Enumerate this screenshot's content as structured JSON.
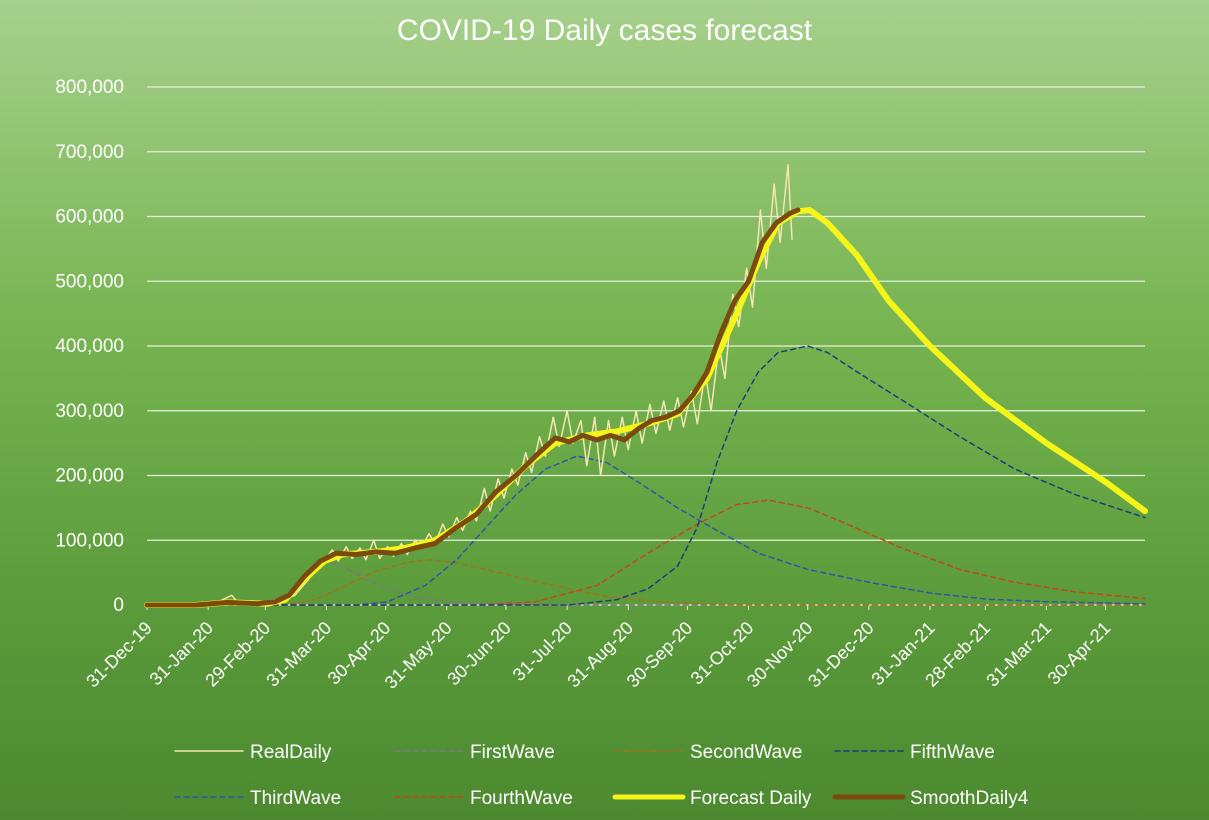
{
  "chart_data": {
    "type": "line",
    "title": "COVID-19 Daily cases forecast",
    "xlabel": "",
    "ylabel": "",
    "ylim": [
      0,
      800000
    ],
    "y_ticks": [
      "0",
      "100,000",
      "200,000",
      "300,000",
      "400,000",
      "500,000",
      "600,000",
      "700,000",
      "800,000"
    ],
    "x_ticks": [
      "31-Dec-19",
      "31-Jan-20",
      "29-Feb-20",
      "31-Mar-20",
      "30-Apr-20",
      "31-May-20",
      "30-Jun-20",
      "31-Jul-20",
      "31-Aug-20",
      "30-Sep-20",
      "31-Oct-20",
      "30-Nov-20",
      "31-Dec-20",
      "31-Jan-21",
      "28-Feb-21",
      "31-Mar-21",
      "30-Apr-21"
    ],
    "x_range": [
      "2019-12-31",
      "2021-05-20"
    ],
    "grid": true,
    "legend_position": "bottom",
    "series": [
      {
        "name": "RealDaily",
        "color": "#f3e6b0",
        "style": "solid",
        "width": 1.5,
        "points": [
          [
            "2019-12-31",
            0
          ],
          [
            "2020-01-20",
            2000
          ],
          [
            "2020-01-31",
            3000
          ],
          [
            "2020-02-05",
            5000
          ],
          [
            "2020-02-12",
            15000
          ],
          [
            "2020-02-15",
            4000
          ],
          [
            "2020-02-25",
            2000
          ],
          [
            "2020-03-05",
            3000
          ],
          [
            "2020-03-15",
            15000
          ],
          [
            "2020-03-22",
            40000
          ],
          [
            "2020-03-29",
            65000
          ],
          [
            "2020-04-03",
            85000
          ],
          [
            "2020-04-06",
            68000
          ],
          [
            "2020-04-10",
            90000
          ],
          [
            "2020-04-13",
            72000
          ],
          [
            "2020-04-17",
            88000
          ],
          [
            "2020-04-20",
            70000
          ],
          [
            "2020-04-24",
            100000
          ],
          [
            "2020-04-27",
            72000
          ],
          [
            "2020-05-01",
            90000
          ],
          [
            "2020-05-04",
            75000
          ],
          [
            "2020-05-08",
            95000
          ],
          [
            "2020-05-11",
            78000
          ],
          [
            "2020-05-15",
            100000
          ],
          [
            "2020-05-18",
            88000
          ],
          [
            "2020-05-22",
            110000
          ],
          [
            "2020-05-25",
            95000
          ],
          [
            "2020-05-29",
            125000
          ],
          [
            "2020-06-01",
            105000
          ],
          [
            "2020-06-05",
            135000
          ],
          [
            "2020-06-08",
            115000
          ],
          [
            "2020-06-12",
            145000
          ],
          [
            "2020-06-15",
            130000
          ],
          [
            "2020-06-19",
            180000
          ],
          [
            "2020-06-22",
            145000
          ],
          [
            "2020-06-26",
            195000
          ],
          [
            "2020-06-29",
            165000
          ],
          [
            "2020-07-03",
            210000
          ],
          [
            "2020-07-06",
            185000
          ],
          [
            "2020-07-10",
            235000
          ],
          [
            "2020-07-13",
            205000
          ],
          [
            "2020-07-17",
            260000
          ],
          [
            "2020-07-20",
            230000
          ],
          [
            "2020-07-24",
            290000
          ],
          [
            "2020-07-27",
            245000
          ],
          [
            "2020-07-31",
            300000
          ],
          [
            "2020-08-03",
            250000
          ],
          [
            "2020-08-07",
            285000
          ],
          [
            "2020-08-10",
            215000
          ],
          [
            "2020-08-14",
            290000
          ],
          [
            "2020-08-17",
            200000
          ],
          [
            "2020-08-21",
            285000
          ],
          [
            "2020-08-24",
            230000
          ],
          [
            "2020-08-28",
            290000
          ],
          [
            "2020-08-31",
            240000
          ],
          [
            "2020-09-04",
            300000
          ],
          [
            "2020-09-07",
            250000
          ],
          [
            "2020-09-11",
            310000
          ],
          [
            "2020-09-14",
            265000
          ],
          [
            "2020-09-18",
            315000
          ],
          [
            "2020-09-21",
            270000
          ],
          [
            "2020-09-25",
            320000
          ],
          [
            "2020-09-28",
            275000
          ],
          [
            "2020-10-02",
            330000
          ],
          [
            "2020-10-05",
            280000
          ],
          [
            "2020-10-09",
            360000
          ],
          [
            "2020-10-12",
            300000
          ],
          [
            "2020-10-16",
            400000
          ],
          [
            "2020-10-19",
            350000
          ],
          [
            "2020-10-23",
            480000
          ],
          [
            "2020-10-26",
            430000
          ],
          [
            "2020-10-30",
            520000
          ],
          [
            "2020-11-02",
            460000
          ],
          [
            "2020-11-06",
            610000
          ],
          [
            "2020-11-09",
            520000
          ],
          [
            "2020-11-13",
            650000
          ],
          [
            "2020-11-16",
            560000
          ],
          [
            "2020-11-20",
            680000
          ],
          [
            "2020-11-22",
            565000
          ]
        ]
      },
      {
        "name": "FirstWave",
        "color": "#7a7a7a",
        "style": "dashed",
        "width": 1.5,
        "points": [
          [
            "2019-12-31",
            0
          ],
          [
            "2020-02-25",
            0
          ],
          [
            "2020-03-10",
            15000
          ],
          [
            "2020-03-20",
            45000
          ],
          [
            "2020-04-01",
            68000
          ],
          [
            "2020-04-08",
            60000
          ],
          [
            "2020-04-20",
            40000
          ],
          [
            "2020-05-01",
            25000
          ],
          [
            "2020-05-15",
            12000
          ],
          [
            "2020-06-01",
            5000
          ],
          [
            "2020-07-01",
            1000
          ],
          [
            "2020-08-01",
            0
          ],
          [
            "2021-05-20",
            0
          ]
        ]
      },
      {
        "name": "SecondWave",
        "color": "#a0741a",
        "style": "dashed",
        "width": 1.5,
        "points": [
          [
            "2019-12-31",
            0
          ],
          [
            "2020-03-10",
            0
          ],
          [
            "2020-03-25",
            8000
          ],
          [
            "2020-04-10",
            30000
          ],
          [
            "2020-04-25",
            52000
          ],
          [
            "2020-05-10",
            65000
          ],
          [
            "2020-05-22",
            70000
          ],
          [
            "2020-06-05",
            65000
          ],
          [
            "2020-06-20",
            55000
          ],
          [
            "2020-07-10",
            40000
          ],
          [
            "2020-08-01",
            25000
          ],
          [
            "2020-08-20",
            13000
          ],
          [
            "2020-09-15",
            5000
          ],
          [
            "2020-10-15",
            1000
          ],
          [
            "2020-11-15",
            0
          ],
          [
            "2021-05-20",
            0
          ]
        ]
      },
      {
        "name": "FifthWave",
        "color": "#1f3d7a",
        "style": "dashed",
        "width": 1.5,
        "points": [
          [
            "2019-12-31",
            0
          ],
          [
            "2020-08-01",
            0
          ],
          [
            "2020-08-25",
            8000
          ],
          [
            "2020-09-10",
            25000
          ],
          [
            "2020-09-25",
            60000
          ],
          [
            "2020-10-05",
            120000
          ],
          [
            "2020-10-15",
            220000
          ],
          [
            "2020-10-25",
            300000
          ],
          [
            "2020-11-05",
            360000
          ],
          [
            "2020-11-15",
            390000
          ],
          [
            "2020-11-30",
            400000
          ],
          [
            "2020-12-10",
            390000
          ],
          [
            "2020-12-25",
            360000
          ],
          [
            "2021-01-15",
            320000
          ],
          [
            "2021-02-15",
            260000
          ],
          [
            "2021-03-15",
            210000
          ],
          [
            "2021-04-15",
            170000
          ],
          [
            "2021-05-20",
            135000
          ]
        ]
      },
      {
        "name": "ThirdWave",
        "color": "#3055a8",
        "style": "dashed",
        "width": 1.5,
        "points": [
          [
            "2019-12-31",
            0
          ],
          [
            "2020-04-15",
            0
          ],
          [
            "2020-05-01",
            5000
          ],
          [
            "2020-05-20",
            30000
          ],
          [
            "2020-06-05",
            70000
          ],
          [
            "2020-06-20",
            120000
          ],
          [
            "2020-07-05",
            170000
          ],
          [
            "2020-07-20",
            210000
          ],
          [
            "2020-08-05",
            230000
          ],
          [
            "2020-08-20",
            220000
          ],
          [
            "2020-09-05",
            190000
          ],
          [
            "2020-09-25",
            150000
          ],
          [
            "2020-10-15",
            115000
          ],
          [
            "2020-11-05",
            80000
          ],
          [
            "2020-11-30",
            55000
          ],
          [
            "2020-12-31",
            35000
          ],
          [
            "2021-02-01",
            18000
          ],
          [
            "2021-03-01",
            9000
          ],
          [
            "2021-04-01",
            5000
          ],
          [
            "2021-05-20",
            2000
          ]
        ]
      },
      {
        "name": "FourthWave",
        "color": "#c04a1a",
        "style": "dashed",
        "width": 1.5,
        "points": [
          [
            "2019-12-31",
            0
          ],
          [
            "2020-06-15",
            0
          ],
          [
            "2020-07-15",
            5000
          ],
          [
            "2020-08-15",
            30000
          ],
          [
            "2020-09-10",
            80000
          ],
          [
            "2020-10-05",
            125000
          ],
          [
            "2020-10-25",
            155000
          ],
          [
            "2020-11-10",
            162000
          ],
          [
            "2020-11-30",
            150000
          ],
          [
            "2020-12-20",
            125000
          ],
          [
            "2021-01-15",
            90000
          ],
          [
            "2021-02-15",
            55000
          ],
          [
            "2021-03-15",
            35000
          ],
          [
            "2021-04-15",
            20000
          ],
          [
            "2021-05-20",
            10000
          ]
        ]
      },
      {
        "name": "Forecast Daily",
        "color": "#f5f51a",
        "style": "solid",
        "width": 6,
        "points": [
          [
            "2019-12-31",
            0
          ],
          [
            "2020-01-25",
            0
          ],
          [
            "2020-02-10",
            4000
          ],
          [
            "2020-03-01",
            2000
          ],
          [
            "2020-03-10",
            8000
          ],
          [
            "2020-03-20",
            40000
          ],
          [
            "2020-03-30",
            68000
          ],
          [
            "2020-04-08",
            78000
          ],
          [
            "2020-04-25",
            82000
          ],
          [
            "2020-05-10",
            88000
          ],
          [
            "2020-05-25",
            100000
          ],
          [
            "2020-06-10",
            130000
          ],
          [
            "2020-06-25",
            170000
          ],
          [
            "2020-07-10",
            215000
          ],
          [
            "2020-07-25",
            250000
          ],
          [
            "2020-08-10",
            262000
          ],
          [
            "2020-08-25",
            268000
          ],
          [
            "2020-09-10",
            280000
          ],
          [
            "2020-09-25",
            295000
          ],
          [
            "2020-10-10",
            350000
          ],
          [
            "2020-10-25",
            450000
          ],
          [
            "2020-11-05",
            530000
          ],
          [
            "2020-11-15",
            590000
          ],
          [
            "2020-11-25",
            608000
          ],
          [
            "2020-12-01",
            610000
          ],
          [
            "2020-12-10",
            590000
          ],
          [
            "2020-12-25",
            540000
          ],
          [
            "2021-01-10",
            470000
          ],
          [
            "2021-01-31",
            400000
          ],
          [
            "2021-02-28",
            320000
          ],
          [
            "2021-03-31",
            250000
          ],
          [
            "2021-04-30",
            190000
          ],
          [
            "2021-05-20",
            145000
          ]
        ]
      },
      {
        "name": "SmoothDaily4",
        "color": "#7a4a0e",
        "style": "solid",
        "width": 5,
        "points": [
          [
            "2019-12-31",
            0
          ],
          [
            "2020-01-25",
            0
          ],
          [
            "2020-02-10",
            4000
          ],
          [
            "2020-02-25",
            2000
          ],
          [
            "2020-03-05",
            5000
          ],
          [
            "2020-03-12",
            15000
          ],
          [
            "2020-03-20",
            45000
          ],
          [
            "2020-03-28",
            68000
          ],
          [
            "2020-04-05",
            80000
          ],
          [
            "2020-04-15",
            78000
          ],
          [
            "2020-04-25",
            82000
          ],
          [
            "2020-05-05",
            80000
          ],
          [
            "2020-05-15",
            88000
          ],
          [
            "2020-05-25",
            95000
          ],
          [
            "2020-06-05",
            120000
          ],
          [
            "2020-06-15",
            140000
          ],
          [
            "2020-06-25",
            175000
          ],
          [
            "2020-07-05",
            200000
          ],
          [
            "2020-07-15",
            230000
          ],
          [
            "2020-07-25",
            258000
          ],
          [
            "2020-08-01",
            252000
          ],
          [
            "2020-08-08",
            262000
          ],
          [
            "2020-08-15",
            255000
          ],
          [
            "2020-08-22",
            262000
          ],
          [
            "2020-08-29",
            255000
          ],
          [
            "2020-09-05",
            272000
          ],
          [
            "2020-09-12",
            285000
          ],
          [
            "2020-09-19",
            290000
          ],
          [
            "2020-09-26",
            300000
          ],
          [
            "2020-10-03",
            325000
          ],
          [
            "2020-10-10",
            360000
          ],
          [
            "2020-10-17",
            420000
          ],
          [
            "2020-10-24",
            470000
          ],
          [
            "2020-10-31",
            500000
          ],
          [
            "2020-11-07",
            560000
          ],
          [
            "2020-11-14",
            590000
          ],
          [
            "2020-11-21",
            605000
          ],
          [
            "2020-11-25",
            610000
          ]
        ]
      }
    ]
  }
}
